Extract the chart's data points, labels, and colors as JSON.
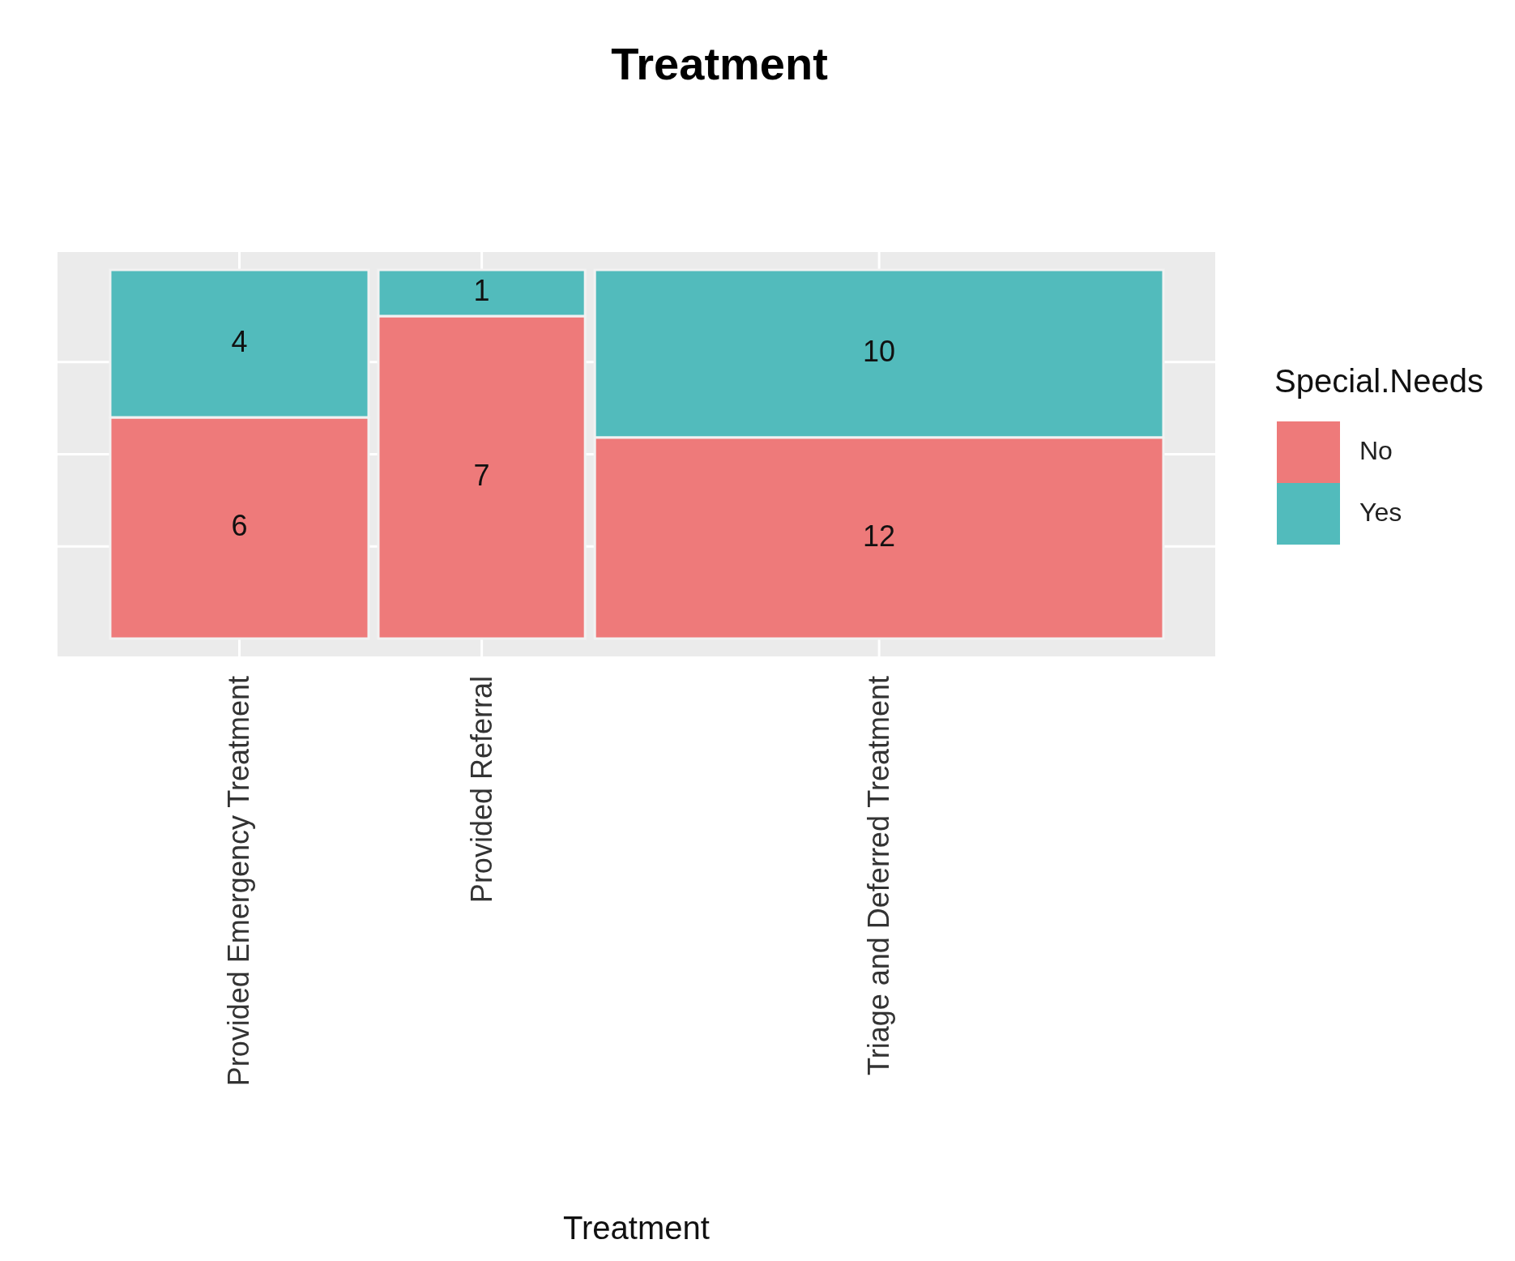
{
  "chart_data": {
    "type": "other",
    "title": "Treatment",
    "xlabel": "Treatment",
    "legend_title": "Special.Needs",
    "legend": "right",
    "data_labels": true,
    "categories": [
      "Provided Emergency Treatment",
      "Provided Referral",
      "Triage and Deferred Treatment"
    ],
    "series": [
      {
        "name": "No",
        "color": "#ee7a7a",
        "values": [
          6,
          7,
          12
        ]
      },
      {
        "name": "Yes",
        "color": "#52bbbc",
        "values": [
          4,
          1,
          10
        ]
      }
    ]
  }
}
